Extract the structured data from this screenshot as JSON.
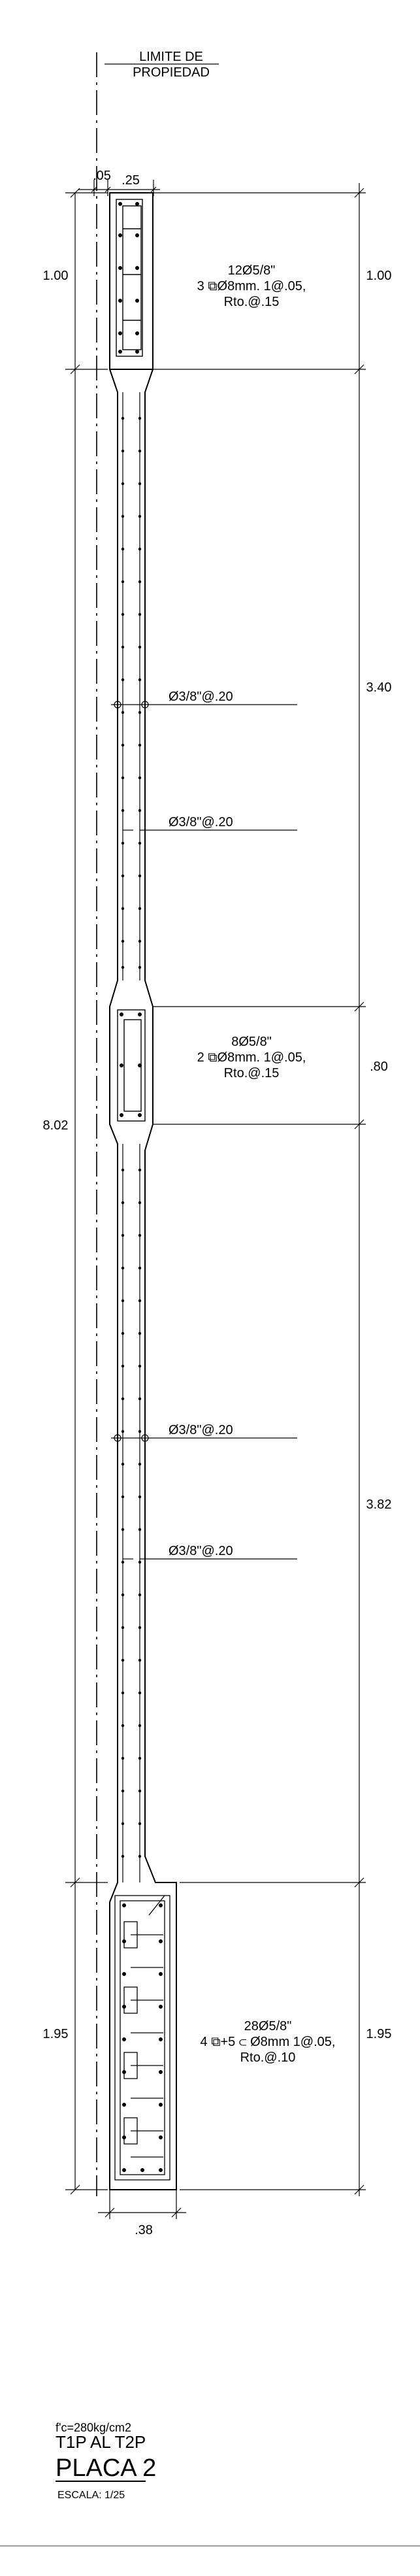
{
  "header": {
    "property_line_label_1": "LIMITE  DE",
    "property_line_label_2": "PROPIEDAD"
  },
  "dimensions": {
    "top_offset": ".05",
    "top_width": ".25",
    "bottom_width": ".38",
    "left_total": "8.02",
    "left_top_segment": "1.00",
    "left_bottom_segment": "1.95",
    "right_segments": [
      "1.00",
      "3.40",
      ".80",
      "3.82",
      "1.95"
    ]
  },
  "annotations": {
    "top_rebar": "12Ø5/8\"",
    "top_stirrup": "3 ⧉Ø8mm. 1@.05,",
    "top_rest": "Rto.@.15",
    "web_bar_1": "Ø3/8\"@.20",
    "web_bar_2": "Ø3/8\"@.20",
    "mid_rebar": "8Ø5/8\"",
    "mid_stirrup": "2 ⧉Ø8mm. 1@.05,",
    "mid_rest": "Rto.@.15",
    "web_bar_3": "Ø3/8\"@.20",
    "web_bar_4": "Ø3/8\"@.20",
    "bottom_rebar": "28Ø5/8\"",
    "bottom_stirrup": "4 ⧉+5 ⊂ Ø8mm  1@.05,",
    "bottom_rest": "Rto.@.10"
  },
  "title_block": {
    "concrete": "f'c=280kg/cm2",
    "levels": "T1P AL T2P",
    "title": "PLACA 2",
    "scale": "ESCALA:  1/25"
  },
  "colors": {
    "line": "#000000",
    "background": "#ffffff"
  }
}
